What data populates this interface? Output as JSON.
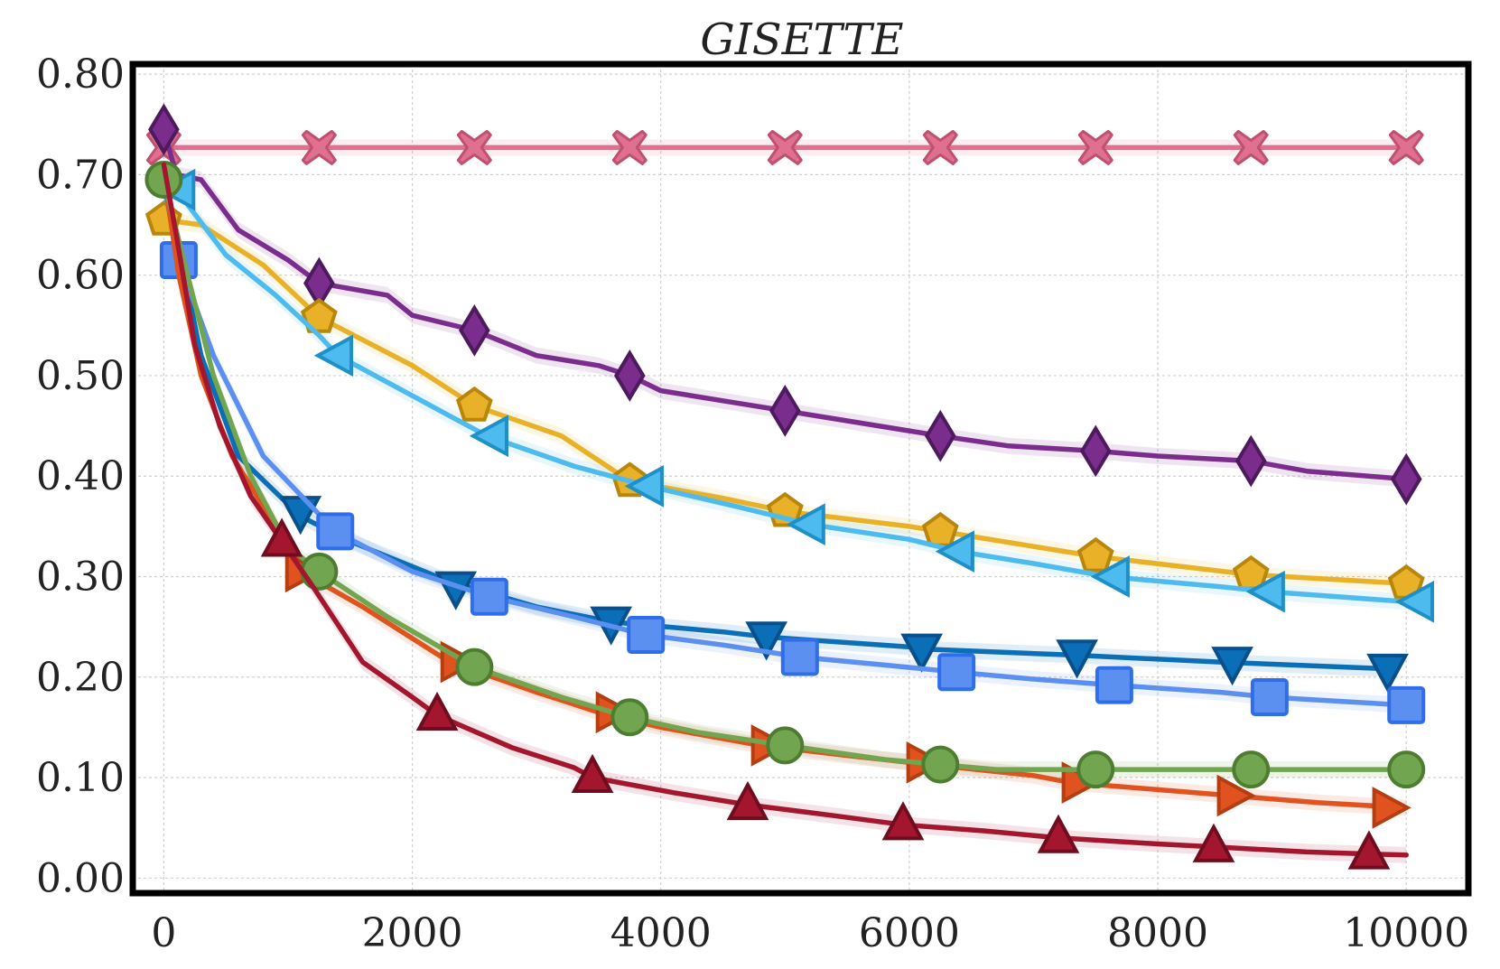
{
  "chart_data": {
    "type": "line",
    "title": "GISETTE",
    "xlabel": "",
    "ylabel": "",
    "xlim": [
      -250,
      10500
    ],
    "ylim": [
      -0.015,
      0.81
    ],
    "xticks": [
      0,
      2000,
      4000,
      6000,
      8000,
      10000
    ],
    "xtick_labels": [
      "0",
      "2000",
      "4000",
      "6000",
      "8000",
      "10000"
    ],
    "yticks": [
      0.0,
      0.1,
      0.2,
      0.3,
      0.4,
      0.5,
      0.6,
      0.7,
      0.8
    ],
    "ytick_labels": [
      "0.00",
      "0.10",
      "0.20",
      "0.30",
      "0.40",
      "0.50",
      "0.60",
      "0.70",
      "0.80"
    ],
    "grid": true,
    "legend": "none",
    "series": [
      {
        "marker": "x-cross",
        "color": "#e0708f",
        "edge": "#c0506f",
        "points": [
          [
            0,
            0.727
          ],
          [
            1000,
            0.727
          ],
          [
            5000,
            0.727
          ],
          [
            10000,
            0.727
          ]
        ],
        "markers": [
          [
            0,
            0.727
          ],
          [
            1250,
            0.727
          ],
          [
            2500,
            0.727
          ],
          [
            3750,
            0.727
          ],
          [
            5000,
            0.727
          ],
          [
            6250,
            0.727
          ],
          [
            7500,
            0.727
          ],
          [
            8750,
            0.727
          ],
          [
            10000,
            0.727
          ]
        ]
      },
      {
        "marker": "diamond",
        "color": "#7b2d8e",
        "edge": "#4e1a5e",
        "points": [
          [
            0,
            0.745
          ],
          [
            100,
            0.7
          ],
          [
            300,
            0.695
          ],
          [
            600,
            0.645
          ],
          [
            1000,
            0.615
          ],
          [
            1250,
            0.592
          ],
          [
            1800,
            0.58
          ],
          [
            2000,
            0.56
          ],
          [
            2500,
            0.545
          ],
          [
            3000,
            0.52
          ],
          [
            3500,
            0.51
          ],
          [
            3750,
            0.5
          ],
          [
            4000,
            0.485
          ],
          [
            4500,
            0.475
          ],
          [
            5000,
            0.465
          ],
          [
            5500,
            0.455
          ],
          [
            6000,
            0.445
          ],
          [
            6250,
            0.44
          ],
          [
            6800,
            0.43
          ],
          [
            7500,
            0.425
          ],
          [
            8000,
            0.42
          ],
          [
            8750,
            0.415
          ],
          [
            9200,
            0.405
          ],
          [
            10000,
            0.397
          ]
        ],
        "markers": [
          [
            0,
            0.745
          ],
          [
            1250,
            0.592
          ],
          [
            2500,
            0.545
          ],
          [
            3750,
            0.5
          ],
          [
            5000,
            0.465
          ],
          [
            6250,
            0.44
          ],
          [
            7500,
            0.425
          ],
          [
            8750,
            0.415
          ],
          [
            10000,
            0.397
          ]
        ]
      },
      {
        "marker": "pentagon",
        "color": "#e9b127",
        "edge": "#b8860b",
        "points": [
          [
            0,
            0.655
          ],
          [
            300,
            0.65
          ],
          [
            800,
            0.61
          ],
          [
            1250,
            0.558
          ],
          [
            2000,
            0.51
          ],
          [
            2500,
            0.47
          ],
          [
            3200,
            0.44
          ],
          [
            3750,
            0.395
          ],
          [
            4500,
            0.378
          ],
          [
            5000,
            0.365
          ],
          [
            6000,
            0.35
          ],
          [
            6250,
            0.345
          ],
          [
            7000,
            0.33
          ],
          [
            7500,
            0.32
          ],
          [
            8750,
            0.302
          ],
          [
            10000,
            0.293
          ]
        ],
        "markers": [
          [
            0,
            0.655
          ],
          [
            1250,
            0.558
          ],
          [
            2500,
            0.47
          ],
          [
            3750,
            0.395
          ],
          [
            5000,
            0.365
          ],
          [
            6250,
            0.345
          ],
          [
            7500,
            0.32
          ],
          [
            8750,
            0.302
          ],
          [
            10000,
            0.293
          ]
        ]
      },
      {
        "marker": "triangle-left",
        "color": "#4dbbee",
        "edge": "#1f8fc8",
        "points": [
          [
            0,
            0.7
          ],
          [
            100,
            0.685
          ],
          [
            500,
            0.62
          ],
          [
            900,
            0.58
          ],
          [
            1250,
            0.54
          ],
          [
            1400,
            0.52
          ],
          [
            2000,
            0.48
          ],
          [
            2600,
            0.44
          ],
          [
            3300,
            0.41
          ],
          [
            3900,
            0.39
          ],
          [
            4600,
            0.37
          ],
          [
            5200,
            0.352
          ],
          [
            6000,
            0.337
          ],
          [
            6400,
            0.325
          ],
          [
            7000,
            0.313
          ],
          [
            7600,
            0.3
          ],
          [
            8500,
            0.29
          ],
          [
            8900,
            0.285
          ],
          [
            10000,
            0.275
          ]
        ],
        "markers": [
          [
            130,
            0.685
          ],
          [
            1400,
            0.52
          ],
          [
            2650,
            0.44
          ],
          [
            3900,
            0.39
          ],
          [
            5200,
            0.352
          ],
          [
            6400,
            0.325
          ],
          [
            7650,
            0.3
          ],
          [
            8900,
            0.285
          ],
          [
            10100,
            0.275
          ]
        ]
      },
      {
        "marker": "triangle-down",
        "color": "#0a6fb7",
        "edge": "#0a4f8a",
        "points": [
          [
            0,
            0.7
          ],
          [
            100,
            0.64
          ],
          [
            300,
            0.52
          ],
          [
            600,
            0.42
          ],
          [
            1100,
            0.36
          ],
          [
            1500,
            0.335
          ],
          [
            2300,
            0.295
          ],
          [
            3000,
            0.27
          ],
          [
            3600,
            0.255
          ],
          [
            4500,
            0.245
          ],
          [
            4850,
            0.24
          ],
          [
            6000,
            0.23
          ],
          [
            6100,
            0.228
          ],
          [
            7300,
            0.222
          ],
          [
            8500,
            0.215
          ],
          [
            9900,
            0.208
          ]
        ],
        "markers": [
          [
            1100,
            0.365
          ],
          [
            2350,
            0.29
          ],
          [
            3600,
            0.255
          ],
          [
            4850,
            0.24
          ],
          [
            6100,
            0.228
          ],
          [
            7350,
            0.222
          ],
          [
            8600,
            0.215
          ],
          [
            9850,
            0.208
          ]
        ]
      },
      {
        "marker": "square",
        "color": "#5b8ff0",
        "edge": "#2f6ee8",
        "points": [
          [
            0,
            0.69
          ],
          [
            120,
            0.615
          ],
          [
            400,
            0.52
          ],
          [
            800,
            0.42
          ],
          [
            1380,
            0.345
          ],
          [
            2000,
            0.305
          ],
          [
            2620,
            0.28
          ],
          [
            3300,
            0.26
          ],
          [
            3880,
            0.242
          ],
          [
            4500,
            0.232
          ],
          [
            5120,
            0.22
          ],
          [
            5800,
            0.212
          ],
          [
            6380,
            0.205
          ],
          [
            7000,
            0.198
          ],
          [
            7650,
            0.192
          ],
          [
            8500,
            0.185
          ],
          [
            8900,
            0.18
          ],
          [
            10000,
            0.172
          ]
        ],
        "markers": [
          [
            120,
            0.615
          ],
          [
            1380,
            0.345
          ],
          [
            2620,
            0.28
          ],
          [
            3880,
            0.242
          ],
          [
            5120,
            0.22
          ],
          [
            6380,
            0.205
          ],
          [
            7650,
            0.192
          ],
          [
            8900,
            0.18
          ],
          [
            10000,
            0.172
          ]
        ]
      },
      {
        "marker": "triangle-right",
        "color": "#e0531f",
        "edge": "#b53d12",
        "points": [
          [
            0,
            0.7
          ],
          [
            120,
            0.6
          ],
          [
            300,
            0.5
          ],
          [
            550,
            0.42
          ],
          [
            800,
            0.37
          ],
          [
            1100,
            0.305
          ],
          [
            1600,
            0.27
          ],
          [
            2300,
            0.215
          ],
          [
            3000,
            0.185
          ],
          [
            3500,
            0.165
          ],
          [
            4000,
            0.15
          ],
          [
            4800,
            0.132
          ],
          [
            5500,
            0.122
          ],
          [
            6000,
            0.115
          ],
          [
            7000,
            0.102
          ],
          [
            7300,
            0.095
          ],
          [
            8000,
            0.088
          ],
          [
            8600,
            0.082
          ],
          [
            9300,
            0.075
          ],
          [
            10000,
            0.07
          ]
        ],
        "markers": [
          [
            1100,
            0.305
          ],
          [
            2350,
            0.215
          ],
          [
            3600,
            0.165
          ],
          [
            4850,
            0.132
          ],
          [
            6100,
            0.115
          ],
          [
            7350,
            0.095
          ],
          [
            8600,
            0.082
          ],
          [
            9850,
            0.07
          ]
        ]
      },
      {
        "marker": "circle",
        "color": "#72a550",
        "edge": "#4e7d31",
        "points": [
          [
            0,
            0.695
          ],
          [
            150,
            0.62
          ],
          [
            400,
            0.5
          ],
          [
            700,
            0.4
          ],
          [
            1000,
            0.33
          ],
          [
            1250,
            0.305
          ],
          [
            1800,
            0.26
          ],
          [
            2500,
            0.21
          ],
          [
            3200,
            0.18
          ],
          [
            3750,
            0.16
          ],
          [
            4300,
            0.145
          ],
          [
            5000,
            0.132
          ],
          [
            5800,
            0.118
          ],
          [
            6250,
            0.113
          ],
          [
            6700,
            0.108
          ],
          [
            7500,
            0.108
          ],
          [
            10000,
            0.108
          ]
        ],
        "markers": [
          [
            0,
            0.695
          ],
          [
            1250,
            0.305
          ],
          [
            2500,
            0.21
          ],
          [
            3750,
            0.16
          ],
          [
            5000,
            0.132
          ],
          [
            6250,
            0.113
          ],
          [
            7500,
            0.108
          ],
          [
            8750,
            0.108
          ],
          [
            10000,
            0.108
          ]
        ]
      },
      {
        "marker": "triangle-up",
        "color": "#a4162e",
        "edge": "#6f0d1f",
        "points": [
          [
            0,
            0.71
          ],
          [
            100,
            0.64
          ],
          [
            250,
            0.53
          ],
          [
            450,
            0.45
          ],
          [
            700,
            0.38
          ],
          [
            950,
            0.335
          ],
          [
            1200,
            0.29
          ],
          [
            1600,
            0.215
          ],
          [
            2000,
            0.18
          ],
          [
            2200,
            0.162
          ],
          [
            2800,
            0.13
          ],
          [
            3300,
            0.11
          ],
          [
            3450,
            0.1
          ],
          [
            4100,
            0.085
          ],
          [
            4700,
            0.073
          ],
          [
            5400,
            0.062
          ],
          [
            5950,
            0.053
          ],
          [
            6600,
            0.047
          ],
          [
            7200,
            0.04
          ],
          [
            8000,
            0.034
          ],
          [
            8450,
            0.031
          ],
          [
            9200,
            0.026
          ],
          [
            9700,
            0.024
          ],
          [
            10000,
            0.023
          ]
        ],
        "markers": [
          [
            950,
            0.335
          ],
          [
            2200,
            0.162
          ],
          [
            3450,
            0.1
          ],
          [
            4700,
            0.073
          ],
          [
            5950,
            0.053
          ],
          [
            7200,
            0.04
          ],
          [
            8450,
            0.031
          ],
          [
            9700,
            0.024
          ]
        ]
      }
    ]
  }
}
